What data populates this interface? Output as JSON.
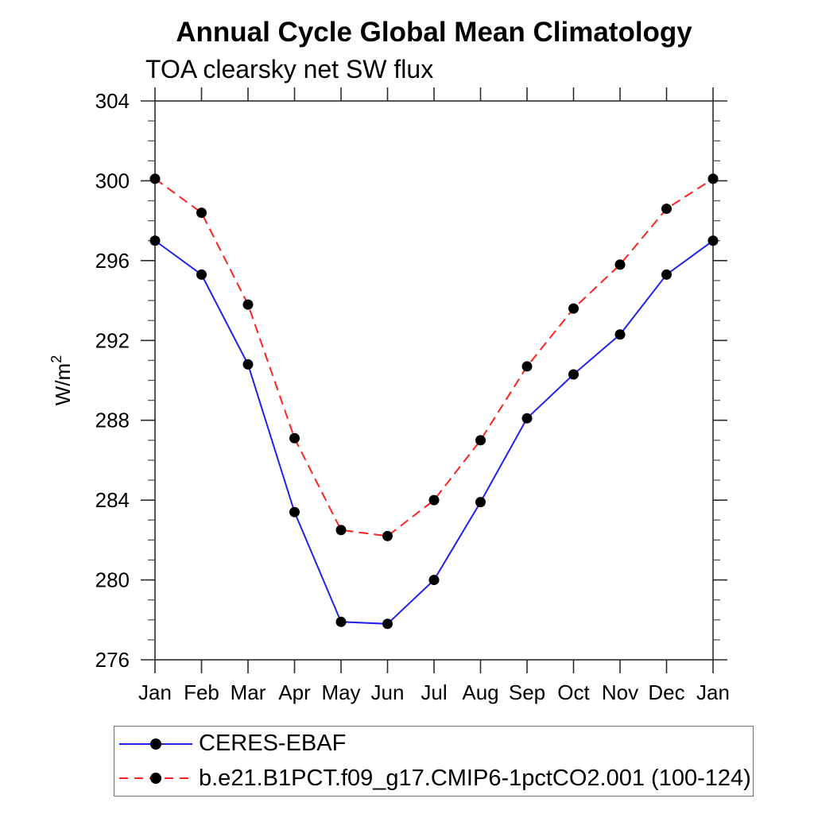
{
  "chart_data": {
    "type": "line",
    "title": "Annual Cycle Global Mean Climatology",
    "subtitle": "TOA clearsky net SW flux",
    "categories": [
      "Jan",
      "Feb",
      "Mar",
      "Apr",
      "May",
      "Jun",
      "Jul",
      "Aug",
      "Sep",
      "Oct",
      "Nov",
      "Dec",
      "Jan"
    ],
    "series": [
      {
        "name": "CERES-EBAF",
        "color": "#2222ee",
        "line_style": "solid",
        "marker": "filled-circle",
        "marker_color": "#000000",
        "values": [
          297.0,
          295.3,
          290.8,
          283.4,
          277.9,
          277.8,
          280.0,
          283.9,
          288.1,
          290.3,
          292.3,
          295.3,
          297.0
        ]
      },
      {
        "name": "b.e21.B1PCT.f09_g17.CMIP6-1pctCO2.001 (100-124)",
        "color": "#ff2222",
        "line_style": "dashed",
        "marker": "filled-circle",
        "marker_color": "#000000",
        "values": [
          300.1,
          298.4,
          293.8,
          287.1,
          282.5,
          282.2,
          284.0,
          287.0,
          290.7,
          293.6,
          295.8,
          298.6,
          300.1
        ]
      }
    ],
    "xlabel": "",
    "ylabel": {
      "base": "W/m",
      "exponent": "2"
    },
    "ylim": [
      276,
      304
    ],
    "ytick_step": 4,
    "yminor_step": 1,
    "grid": false,
    "legend_position": "bottom-left",
    "axis_color": "#2b2b2b",
    "background_color": "#ffffff"
  }
}
